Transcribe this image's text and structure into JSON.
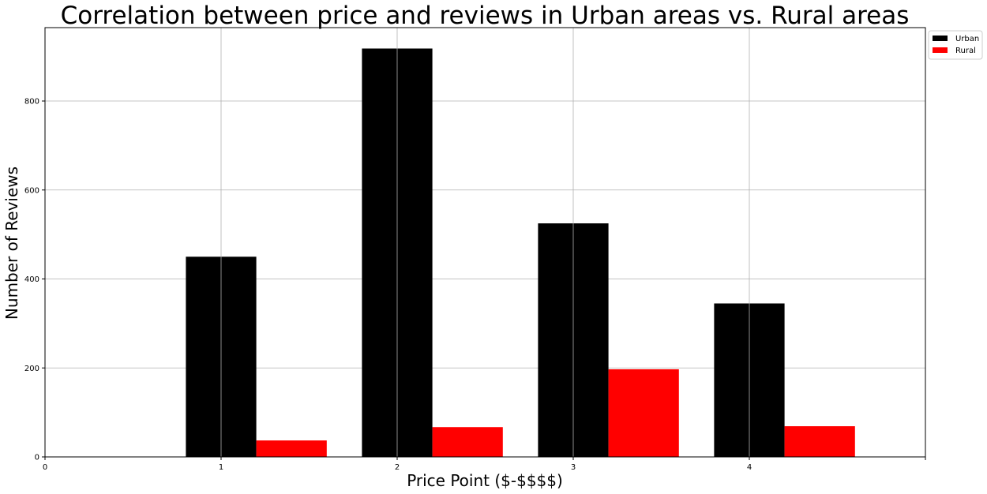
{
  "chart_data": {
    "type": "bar",
    "title": "Correlation between price and reviews in Urban areas vs. Rural areas",
    "xlabel": "Price Point ($-$$$$)",
    "ylabel": "Number of Reviews",
    "x": [
      1,
      2,
      3,
      4
    ],
    "xlim": [
      0,
      5
    ],
    "ylim": [
      0,
      965
    ],
    "xticks": [
      0,
      1,
      2,
      3,
      4
    ],
    "yticks": [
      0,
      200,
      400,
      600,
      800
    ],
    "grid": true,
    "legend_position": "outside top-right",
    "series": [
      {
        "name": "Urban",
        "values": [
          450,
          918,
          525,
          345
        ],
        "color": "#000000"
      },
      {
        "name": "Rural",
        "values": [
          37,
          67,
          197,
          69
        ],
        "color": "#ff0000"
      }
    ]
  }
}
